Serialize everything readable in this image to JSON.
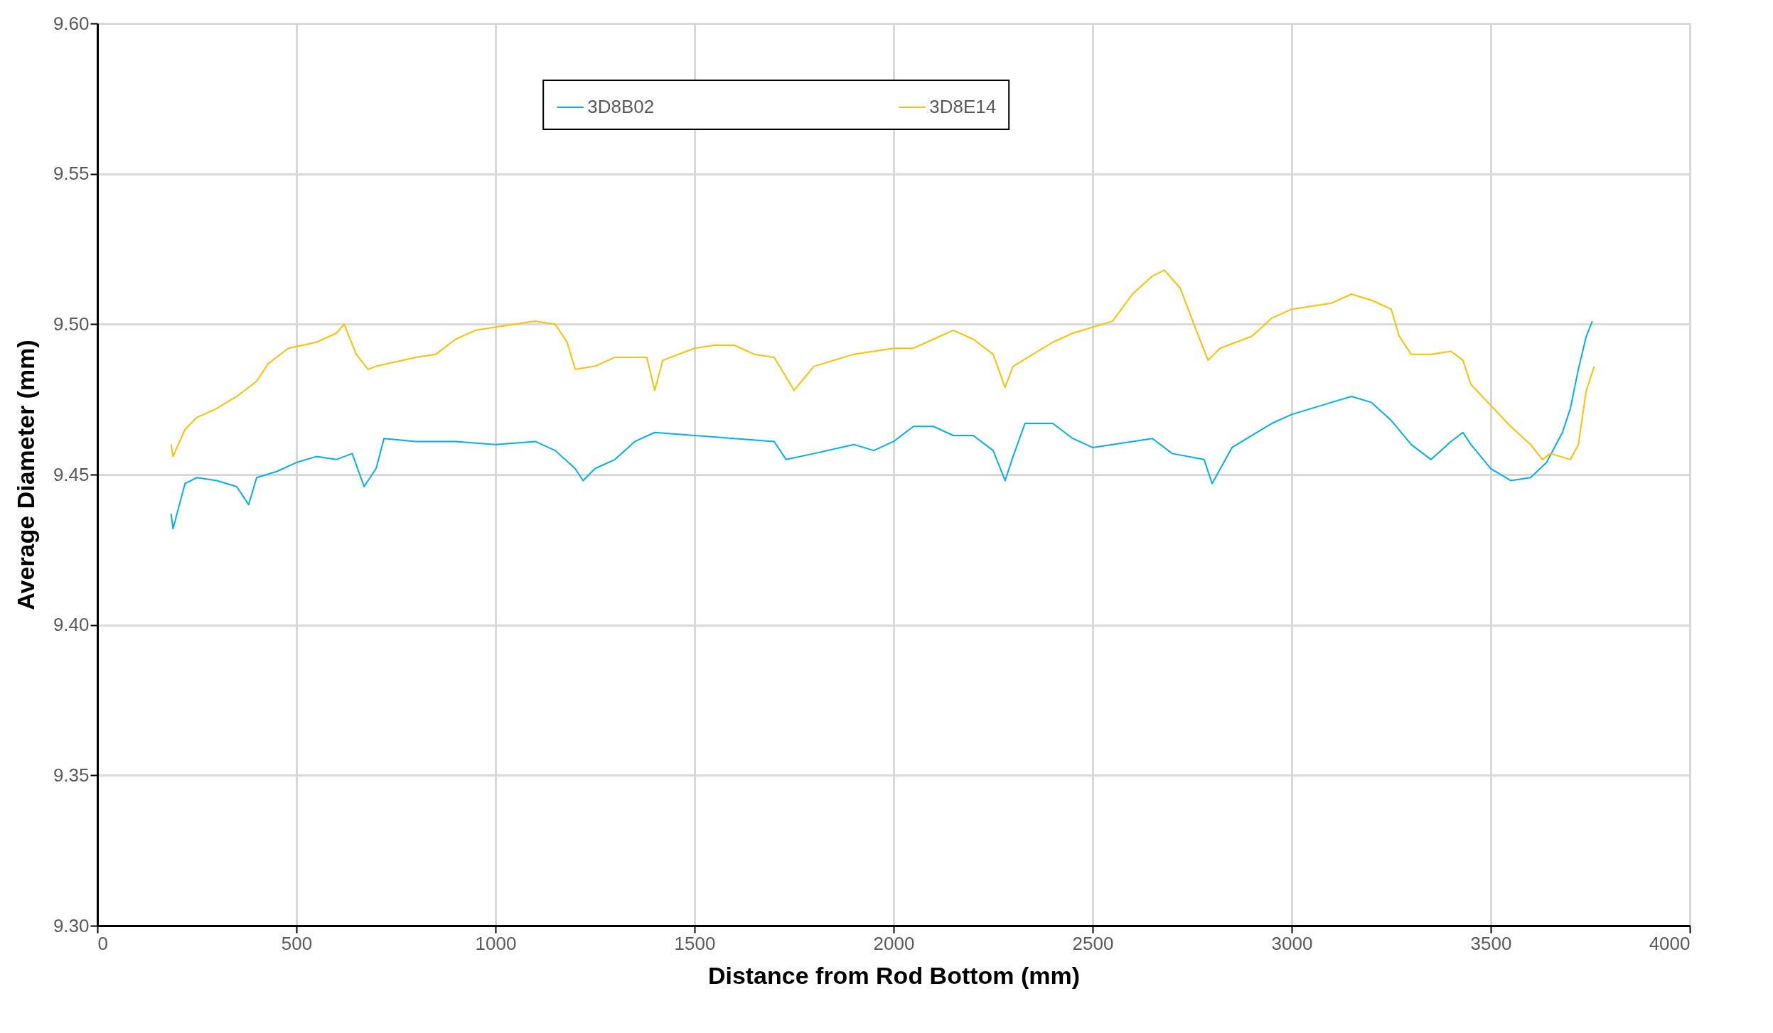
{
  "chart_data": {
    "type": "line",
    "xlabel": "Distance from Rod Bottom (mm)",
    "ylabel": "Average Diameter (mm)",
    "xlim": [
      0,
      4000
    ],
    "xticks": [
      0,
      500,
      1000,
      1500,
      2000,
      2500,
      3000,
      3500,
      4000
    ],
    "ylim": [
      9.3,
      9.6
    ],
    "yticks": [
      {
        "value": 9.3,
        "label": "9.30"
      },
      {
        "value": 9.35,
        "label": "9.35"
      },
      {
        "value": 9.4,
        "label": "9.40"
      },
      {
        "value": 9.45,
        "label": "9.45"
      },
      {
        "value": 9.5,
        "label": "9.50"
      },
      {
        "value": 9.55,
        "label": "9.55"
      },
      {
        "value": 9.6,
        "label": "9.60"
      }
    ],
    "grid": true,
    "legend": "top",
    "marker": "none",
    "line_style": "solid",
    "series": [
      {
        "name": "3D8B02",
        "color": "#00b0f0",
        "x": [
          185,
          190,
          220,
          250,
          300,
          350,
          380,
          400,
          450,
          500,
          550,
          600,
          640,
          670,
          700,
          720,
          800,
          900,
          1000,
          1100,
          1150,
          1200,
          1220,
          1250,
          1300,
          1350,
          1400,
          1500,
          1600,
          1700,
          1730,
          1800,
          1900,
          1950,
          2000,
          2050,
          2100,
          2150,
          2200,
          2250,
          2280,
          2300,
          2330,
          2400,
          2450,
          2500,
          2600,
          2650,
          2700,
          2780,
          2800,
          2850,
          2900,
          2950,
          3000,
          3100,
          3150,
          3200,
          3250,
          3300,
          3350,
          3400,
          3430,
          3450,
          3500,
          3550,
          3600,
          3640,
          3680,
          3700,
          3720,
          3740,
          3755
        ],
        "values": [
          9.437,
          9.432,
          9.447,
          9.449,
          9.448,
          9.446,
          9.44,
          9.449,
          9.451,
          9.454,
          9.456,
          9.455,
          9.457,
          9.446,
          9.452,
          9.462,
          9.461,
          9.461,
          9.46,
          9.461,
          9.458,
          9.452,
          9.448,
          9.452,
          9.455,
          9.461,
          9.464,
          9.463,
          9.462,
          9.461,
          9.455,
          9.457,
          9.46,
          9.458,
          9.461,
          9.466,
          9.466,
          9.463,
          9.463,
          9.458,
          9.448,
          9.456,
          9.467,
          9.467,
          9.462,
          9.459,
          9.461,
          9.462,
          9.457,
          9.455,
          9.447,
          9.459,
          9.463,
          9.467,
          9.47,
          9.474,
          9.476,
          9.474,
          9.468,
          9.46,
          9.455,
          9.461,
          9.464,
          9.46,
          9.452,
          9.448,
          9.449,
          9.454,
          9.464,
          9.472,
          9.485,
          9.496,
          9.501
        ]
      },
      {
        "name": "3D8E14",
        "color": "#ffc000",
        "x": [
          185,
          190,
          220,
          250,
          300,
          350,
          400,
          430,
          480,
          550,
          600,
          620,
          650,
          680,
          700,
          800,
          850,
          900,
          950,
          1000,
          1050,
          1100,
          1150,
          1180,
          1200,
          1250,
          1300,
          1380,
          1400,
          1420,
          1500,
          1550,
          1600,
          1650,
          1700,
          1750,
          1800,
          1900,
          2000,
          2050,
          2100,
          2150,
          2200,
          2250,
          2280,
          2300,
          2400,
          2450,
          2500,
          2550,
          2600,
          2650,
          2680,
          2720,
          2760,
          2790,
          2820,
          2900,
          2950,
          3000,
          3100,
          3150,
          3200,
          3250,
          3270,
          3300,
          3350,
          3400,
          3430,
          3450,
          3500,
          3550,
          3600,
          3630,
          3650,
          3700,
          3720,
          3740,
          3755,
          3760
        ],
        "values": [
          9.46,
          9.456,
          9.465,
          9.469,
          9.472,
          9.476,
          9.481,
          9.487,
          9.492,
          9.494,
          9.497,
          9.5,
          9.49,
          9.485,
          9.486,
          9.489,
          9.49,
          9.495,
          9.498,
          9.499,
          9.5,
          9.501,
          9.5,
          9.494,
          9.485,
          9.486,
          9.489,
          9.489,
          9.478,
          9.488,
          9.492,
          9.493,
          9.493,
          9.49,
          9.489,
          9.478,
          9.486,
          9.49,
          9.492,
          9.492,
          9.495,
          9.498,
          9.495,
          9.49,
          9.479,
          9.486,
          9.494,
          9.497,
          9.499,
          9.501,
          9.51,
          9.516,
          9.518,
          9.512,
          9.498,
          9.488,
          9.492,
          9.496,
          9.502,
          9.505,
          9.507,
          9.51,
          9.508,
          9.505,
          9.496,
          9.49,
          9.49,
          9.491,
          9.488,
          9.48,
          9.473,
          9.466,
          9.46,
          9.455,
          9.457,
          9.455,
          9.46,
          9.478,
          9.484,
          9.486
        ]
      }
    ]
  }
}
